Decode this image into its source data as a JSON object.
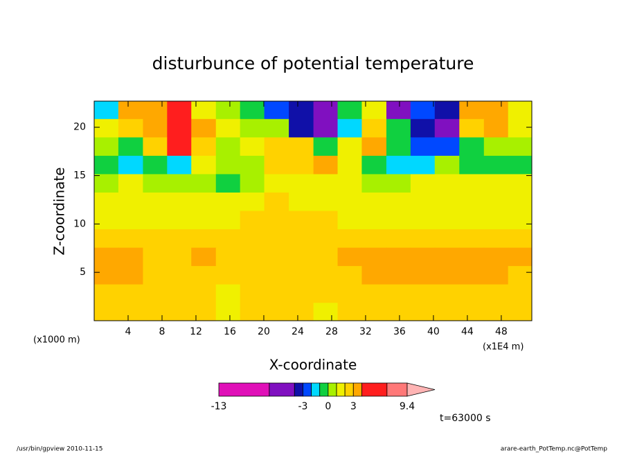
{
  "chart_data": {
    "type": "contour",
    "title": "disturbunce of potential temperature",
    "xlabel": "X-coordinate",
    "ylabel": "Z-coordinate",
    "x_unit": "(x1E4 m)",
    "y_unit": "(x1000 m)",
    "annotation": "t=63000 s",
    "xlim": [
      0,
      51.6
    ],
    "ylim": [
      0,
      22.7
    ],
    "xticks": [
      4,
      8,
      12,
      16,
      20,
      24,
      28,
      32,
      36,
      40,
      44,
      48
    ],
    "yticks": [
      5,
      10,
      15,
      20
    ],
    "x": [
      1.4,
      4.3,
      7.2,
      10.0,
      12.9,
      15.8,
      18.6,
      21.5,
      24.4,
      27.3,
      30.1,
      33.0,
      35.9,
      38.7,
      41.6,
      44.5,
      47.4,
      50.2
    ],
    "y": [
      21.8,
      19.9,
      18.0,
      16.1,
      14.2,
      12.3,
      10.4,
      8.5,
      6.6,
      4.7,
      2.8,
      0.9
    ],
    "z": [
      [
        -1.5,
        3.5,
        3,
        5,
        1.5,
        0.5,
        -0.5,
        -2.5,
        -3.5,
        -5,
        -0.5,
        1.5,
        -5,
        -2.5,
        -3.5,
        3,
        3.5,
        1.5
      ],
      [
        1.5,
        2.5,
        3.5,
        6,
        3,
        1,
        0.5,
        0.5,
        -3.5,
        -6,
        -2,
        2,
        -1,
        -3.5,
        -5,
        2,
        3,
        1.5
      ],
      [
        0.5,
        -0.5,
        2,
        5,
        2.5,
        0.5,
        1,
        2.5,
        2,
        -1,
        1.5,
        3.5,
        -1,
        -2.5,
        -2.5,
        -1,
        0.5,
        0.5
      ],
      [
        -0.5,
        -1.5,
        -1,
        -1.5,
        1.5,
        0,
        0.5,
        2,
        2.5,
        3.5,
        1,
        -0.5,
        -2,
        -1.5,
        0.5,
        -0.5,
        -0.5,
        -0.5
      ],
      [
        0.5,
        1.5,
        0.5,
        0.5,
        0.5,
        -0.5,
        0,
        1,
        1.5,
        1.5,
        1,
        0.5,
        0.5,
        1.5,
        1.5,
        1.5,
        1.5,
        1.5
      ],
      [
        1.5,
        1.5,
        1.5,
        1.5,
        1.5,
        1.5,
        1.5,
        2.2,
        1.5,
        1.5,
        1.5,
        1.5,
        1.5,
        1.5,
        1.5,
        1.5,
        1.5,
        1.5
      ],
      [
        1.7,
        1.7,
        1.7,
        1.7,
        1.7,
        1.7,
        2.5,
        2.5,
        2.5,
        2.5,
        1.7,
        1.7,
        1.7,
        1.7,
        1.7,
        1.7,
        1.7,
        1.7
      ],
      [
        2.5,
        2.5,
        2.5,
        2.5,
        2.5,
        2.5,
        2.5,
        2.5,
        2.5,
        2.5,
        2.5,
        2.5,
        2.5,
        2.5,
        2.5,
        2.5,
        2.5,
        2.5
      ],
      [
        3.5,
        3.5,
        2.5,
        2.5,
        3.5,
        2.5,
        2.5,
        2.5,
        2.5,
        2.5,
        3.5,
        3.5,
        3.5,
        3.5,
        3.5,
        3.5,
        3.5,
        3.5
      ],
      [
        3.5,
        3.5,
        2.5,
        2.5,
        2.5,
        2.5,
        2.5,
        2.5,
        2.5,
        2.5,
        2.5,
        3.5,
        3.5,
        3.5,
        3.5,
        3.5,
        3.5,
        2.5
      ],
      [
        2.5,
        2.5,
        2.5,
        2.5,
        2.5,
        1.5,
        2.5,
        2.5,
        2.5,
        2.5,
        2.5,
        2.5,
        2.5,
        2.5,
        2.5,
        2.5,
        2.5,
        2.5
      ],
      [
        2.5,
        2.5,
        2.5,
        2.5,
        2.5,
        1.5,
        2.5,
        2.5,
        2.5,
        1.5,
        2.5,
        2.5,
        2.5,
        2.5,
        2.5,
        2.5,
        2.5,
        2.5
      ]
    ],
    "colorbar": {
      "levels": [
        -13,
        -7,
        -4,
        -3,
        -2,
        -1,
        0,
        1,
        2,
        3,
        4,
        7,
        9.4
      ],
      "colors": [
        "#e010b8",
        "#8010c0",
        "#1010a8",
        "#0048ff",
        "#00d8ff",
        "#10d040",
        "#a8f000",
        "#f0f000",
        "#ffd200",
        "#ffa800",
        "#ff1e1e",
        "#ff7878",
        "#ffb4b4"
      ],
      "ticks": [
        -13,
        -3,
        0,
        3,
        9.4
      ]
    },
    "footer_left": "/usr/bin/gpview   2010-11-15",
    "footer_right": "arare-earth_PotTemp.nc@PotTemp"
  }
}
